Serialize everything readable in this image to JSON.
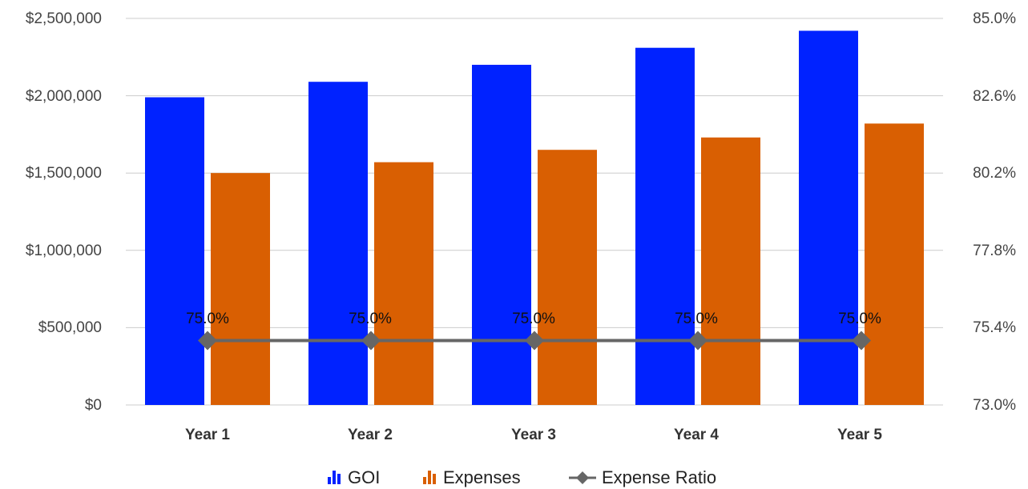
{
  "chart_data": {
    "type": "bar",
    "categories": [
      "Year 1",
      "Year 2",
      "Year 3",
      "Year 4",
      "Year 5"
    ],
    "series": [
      {
        "name": "GOI",
        "type": "bar",
        "axis": "left",
        "color": "#0022ff",
        "values": [
          1990000,
          2090000,
          2200000,
          2310000,
          2420000
        ]
      },
      {
        "name": "Expenses",
        "type": "bar",
        "axis": "left",
        "color": "#d95f02",
        "values": [
          1500000,
          1570000,
          1650000,
          1730000,
          1820000
        ]
      },
      {
        "name": "Expense Ratio",
        "type": "line",
        "axis": "right",
        "color": "#666666",
        "marker": "diamond",
        "values": [
          75.0,
          75.0,
          75.0,
          75.0,
          75.0
        ],
        "data_labels": [
          "75.0%",
          "75.0%",
          "75.0%",
          "75.0%",
          "75.0%"
        ]
      }
    ],
    "y_left": {
      "ticks": [
        "$2,500,000",
        "$2,000,000",
        "$1,500,000",
        "$1,000,000",
        "$500,000",
        "$0"
      ],
      "ylim": [
        0,
        2500000
      ]
    },
    "y_right": {
      "ticks": [
        "85.0%",
        "82.6%",
        "80.2%",
        "77.8%",
        "75.4%",
        "73.0%"
      ],
      "ylim": [
        73.0,
        85.0
      ]
    },
    "grid": true,
    "legend": {
      "position": "bottom",
      "entries": [
        "GOI",
        "Expenses",
        "Expense Ratio"
      ]
    }
  }
}
